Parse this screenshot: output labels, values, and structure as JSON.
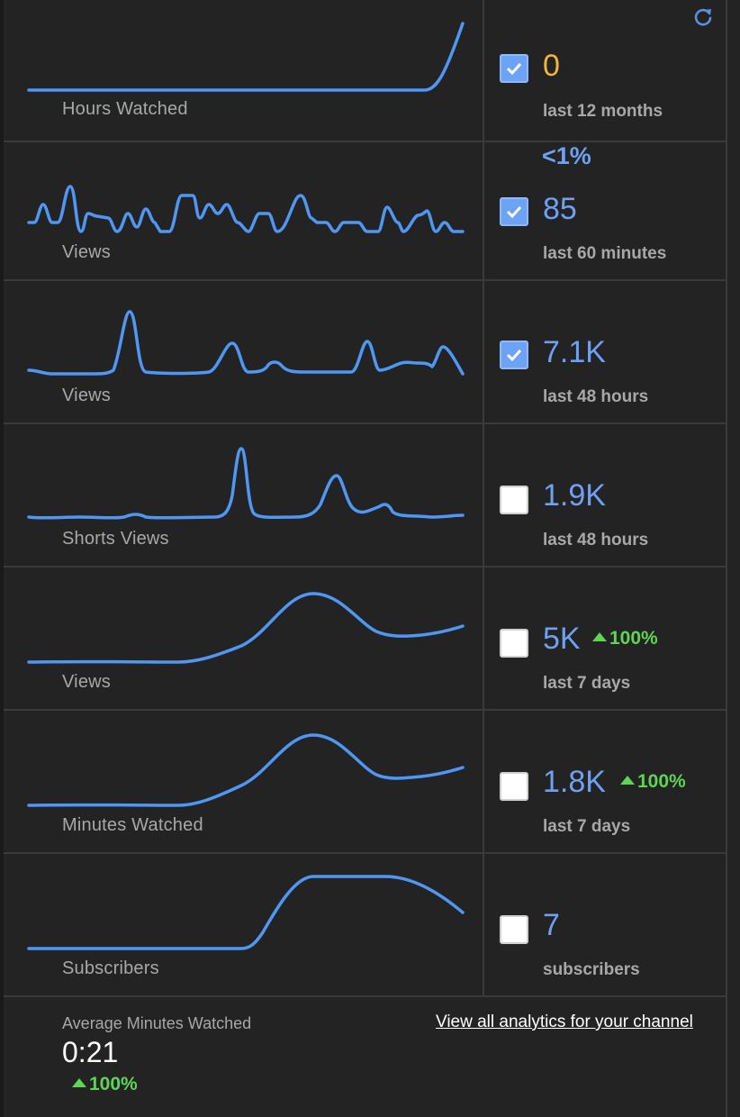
{
  "colors": {
    "line": "#4f97f3",
    "value": "#6ea1f3",
    "zero_value": "#f1b63b",
    "positive": "#5ed553",
    "label": "#a8a8a8"
  },
  "header": {
    "refresh_icon": "refresh-icon"
  },
  "metrics": [
    {
      "label": "Hours Watched",
      "value": "0",
      "period": "last 12 months",
      "checked": true,
      "change": ""
    },
    {
      "label": "Views",
      "value": "85",
      "period": "last 60 minutes",
      "checked": true,
      "percent_top": "<1%",
      "change": ""
    },
    {
      "label": "Views",
      "value": "7.1K",
      "period": "last 48 hours",
      "checked": true,
      "change": ""
    },
    {
      "label": "Shorts Views",
      "value": "1.9K",
      "period": "last 48 hours",
      "checked": false,
      "change": ""
    },
    {
      "label": "Views",
      "value": "5K",
      "period": "last 7 days",
      "checked": false,
      "change": "100%"
    },
    {
      "label": "Minutes Watched",
      "value": "1.8K",
      "period": "last 7 days",
      "checked": false,
      "change": "100%"
    },
    {
      "label": "Subscribers",
      "value": "7",
      "period": "subscribers",
      "checked": false,
      "change": ""
    }
  ],
  "footer": {
    "avg_label": "Average Minutes Watched",
    "avg_value": "0:21",
    "avg_change": "100%",
    "link": "View all analytics for your channel"
  }
}
